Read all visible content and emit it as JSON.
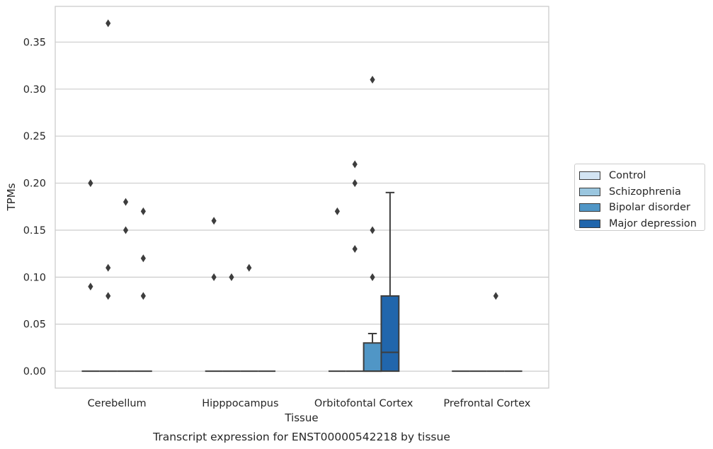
{
  "chart_data": {
    "type": "box",
    "title": "Transcript expression for ENST00000542218 by tissue",
    "xlabel": "Tissue",
    "ylabel": "TPMs",
    "ylim": [
      -0.018,
      0.388
    ],
    "yticks": [
      0.0,
      0.05,
      0.1,
      0.15,
      0.2,
      0.25,
      0.3,
      0.35
    ],
    "ytick_labels": [
      "0.00",
      "0.05",
      "0.10",
      "0.15",
      "0.20",
      "0.25",
      "0.30",
      "0.35"
    ],
    "grid": "horizontal",
    "legend_position": "right",
    "categories": [
      "Cerebellum",
      "Hipppocampus",
      "Orbitofontal Cortex",
      "Prefrontal Cortex"
    ],
    "series": [
      {
        "name": "Control",
        "color": "#d3e4f3",
        "boxes": [
          {
            "q1": 0,
            "median": 0,
            "q3": 0,
            "whisker_low": 0,
            "whisker_high": 0,
            "outliers": [
              0.2,
              0.09
            ]
          },
          {
            "q1": 0,
            "median": 0,
            "q3": 0,
            "whisker_low": 0,
            "whisker_high": 0,
            "outliers": [
              0.16,
              0.1
            ]
          },
          {
            "q1": 0,
            "median": 0,
            "q3": 0,
            "whisker_low": 0,
            "whisker_high": 0,
            "outliers": [
              0.17
            ]
          },
          {
            "q1": 0,
            "median": 0,
            "q3": 0,
            "whisker_low": 0,
            "whisker_high": 0,
            "outliers": []
          }
        ]
      },
      {
        "name": "Schizophrenia",
        "color": "#9ac6df",
        "boxes": [
          {
            "q1": 0,
            "median": 0,
            "q3": 0,
            "whisker_low": 0,
            "whisker_high": 0,
            "outliers": [
              0.37,
              0.11,
              0.08
            ]
          },
          {
            "q1": 0,
            "median": 0,
            "q3": 0,
            "whisker_low": 0,
            "whisker_high": 0,
            "outliers": [
              0.1
            ]
          },
          {
            "q1": 0,
            "median": 0,
            "q3": 0,
            "whisker_low": 0,
            "whisker_high": 0,
            "outliers": [
              0.22,
              0.2,
              0.13
            ]
          },
          {
            "q1": 0,
            "median": 0,
            "q3": 0,
            "whisker_low": 0,
            "whisker_high": 0,
            "outliers": []
          }
        ]
      },
      {
        "name": "Bipolar disorder",
        "color": "#5096c6",
        "boxes": [
          {
            "q1": 0,
            "median": 0,
            "q3": 0,
            "whisker_low": 0,
            "whisker_high": 0,
            "outliers": [
              0.18,
              0.15
            ]
          },
          {
            "q1": 0,
            "median": 0,
            "q3": 0,
            "whisker_low": 0,
            "whisker_high": 0,
            "outliers": [
              0.11
            ]
          },
          {
            "q1": 0,
            "median": 0,
            "q3": 0.03,
            "whisker_low": 0,
            "whisker_high": 0.04,
            "outliers": [
              0.31,
              0.15,
              0.1
            ]
          },
          {
            "q1": 0,
            "median": 0,
            "q3": 0,
            "whisker_low": 0,
            "whisker_high": 0,
            "outliers": [
              0.08
            ]
          }
        ]
      },
      {
        "name": "Major depression",
        "color": "#2166ac",
        "boxes": [
          {
            "q1": 0,
            "median": 0,
            "q3": 0,
            "whisker_low": 0,
            "whisker_high": 0,
            "outliers": [
              0.17,
              0.12,
              0.08
            ]
          },
          {
            "q1": 0,
            "median": 0,
            "q3": 0,
            "whisker_low": 0,
            "whisker_high": 0,
            "outliers": []
          },
          {
            "q1": 0,
            "median": 0.02,
            "q3": 0.08,
            "whisker_low": 0,
            "whisker_high": 0.19,
            "outliers": []
          },
          {
            "q1": 0,
            "median": 0,
            "q3": 0,
            "whisker_low": 0,
            "whisker_high": 0,
            "outliers": []
          }
        ]
      }
    ]
  }
}
